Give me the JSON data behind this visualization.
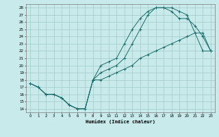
{
  "title": "",
  "xlabel": "Humidex (Indice chaleur)",
  "xlim": [
    -0.5,
    23.5
  ],
  "ylim": [
    13.5,
    28.5
  ],
  "yticks": [
    14,
    15,
    16,
    17,
    18,
    19,
    20,
    21,
    22,
    23,
    24,
    25,
    26,
    27,
    28
  ],
  "xticks": [
    0,
    1,
    2,
    3,
    4,
    5,
    6,
    7,
    8,
    9,
    10,
    11,
    12,
    13,
    14,
    15,
    16,
    17,
    18,
    19,
    20,
    21,
    22,
    23
  ],
  "bg_color": "#c8eaea",
  "grid_color": "#a0c8c8",
  "line_color": "#1a6b6b",
  "line1_y": [
    17.5,
    17.0,
    16.0,
    16.0,
    15.5,
    14.5,
    14.0,
    14.0,
    18.0,
    20.0,
    20.5,
    21.0,
    23.0,
    25.0,
    26.5,
    27.5,
    28.0,
    28.0,
    28.0,
    27.5,
    27.0,
    24.5,
    24.5,
    22.0
  ],
  "line2_y": [
    17.5,
    17.0,
    16.0,
    16.0,
    15.5,
    14.5,
    14.0,
    14.0,
    18.0,
    19.0,
    19.5,
    20.0,
    21.0,
    23.0,
    25.0,
    27.0,
    28.0,
    28.0,
    27.5,
    26.5,
    26.5,
    25.5,
    24.0,
    22.0
  ],
  "line3_y": [
    17.5,
    17.0,
    16.0,
    16.0,
    15.5,
    14.5,
    14.0,
    14.0,
    18.0,
    18.0,
    18.5,
    19.0,
    19.5,
    20.0,
    21.0,
    21.5,
    22.0,
    22.5,
    23.0,
    23.5,
    24.0,
    24.5,
    22.0,
    22.0
  ]
}
